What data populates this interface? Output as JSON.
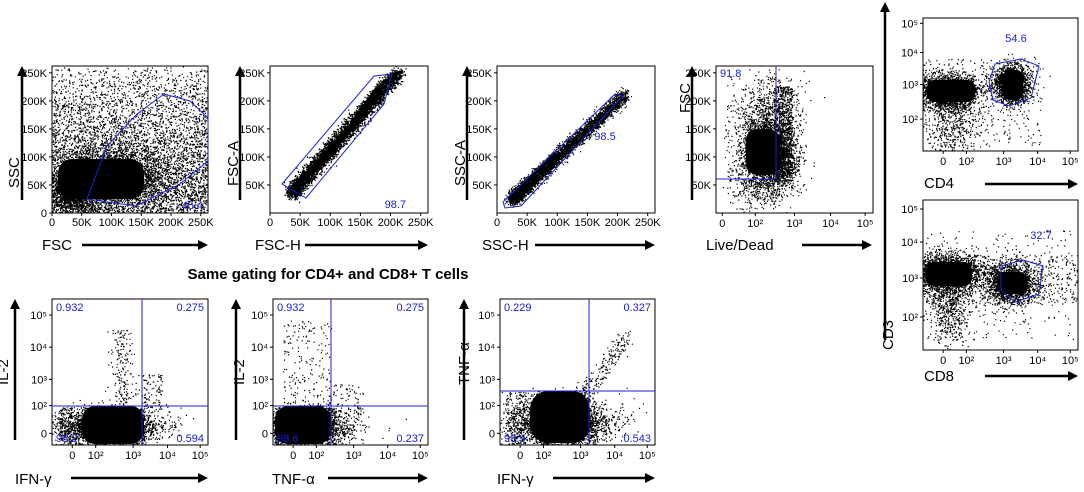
{
  "colors": {
    "gate": "#1a22d6",
    "dots": "#000000",
    "frame": "#000000"
  },
  "section_title": "Same gating for CD4+ and CD8+ T cells",
  "chart_data": [
    {
      "id": "p1",
      "type": "scatter",
      "xlabel": "FSC",
      "ylabel": "SSC",
      "xscale": "linear",
      "yscale": "linear",
      "xlim": [
        0,
        262144
      ],
      "ylim": [
        0,
        262144
      ],
      "xticks": [
        "0",
        "50K",
        "100K",
        "150K",
        "200K",
        "250K"
      ],
      "yticks": [
        "0",
        "50K",
        "100K",
        "150K",
        "200K",
        "250K"
      ],
      "gate": "polygon",
      "gate_percent": "45.4"
    },
    {
      "id": "p2",
      "type": "scatter",
      "xlabel": "FSC-H",
      "ylabel": "FSC-A",
      "xscale": "linear",
      "yscale": "linear",
      "xlim": [
        0,
        262144
      ],
      "ylim": [
        0,
        262144
      ],
      "xticks": [
        "0",
        "50K",
        "100K",
        "150K",
        "200K",
        "250K"
      ],
      "yticks": [
        "50K",
        "100K",
        "150K",
        "200K",
        "250K"
      ],
      "gate": "polygon",
      "gate_percent": "98.7"
    },
    {
      "id": "p3",
      "type": "scatter",
      "xlabel": "SSC-H",
      "ylabel": "SSC-A",
      "xscale": "linear",
      "yscale": "linear",
      "xlim": [
        0,
        262144
      ],
      "ylim": [
        0,
        262144
      ],
      "xticks": [
        "0",
        "50K",
        "100K",
        "150K",
        "200K",
        "250K"
      ],
      "yticks": [
        "50K",
        "100K",
        "150K",
        "200K",
        "250K"
      ],
      "gate": "polygon",
      "gate_percent": "98.5"
    },
    {
      "id": "p4",
      "type": "scatter",
      "xlabel": "Live/Dead",
      "ylabel": "FSC",
      "xscale": "biexponential",
      "yscale": "linear",
      "ylim": [
        0,
        262144
      ],
      "xticks": [
        "0",
        "10²",
        "10³",
        "10⁴",
        "10⁵"
      ],
      "yticks": [
        "50K",
        "100K",
        "150K",
        "200K",
        "250K"
      ],
      "gate": "rectangle",
      "gate_percent": "91.8"
    },
    {
      "id": "p5",
      "type": "scatter",
      "xlabel": "CD4",
      "ylabel": "CD3",
      "xscale": "biexponential",
      "yscale": "biexponential",
      "xticks": [
        "0",
        "10²",
        "10³",
        "10⁴",
        "10⁵"
      ],
      "yticks": [
        "10²",
        "10³",
        "10⁴",
        "10⁵"
      ],
      "gate": "polygon",
      "gate_percent": "54.6"
    },
    {
      "id": "p6",
      "type": "scatter",
      "xlabel": "CD8",
      "ylabel": "CD3",
      "xscale": "biexponential",
      "yscale": "biexponential",
      "xticks": [
        "0",
        "10²",
        "10³",
        "10⁴",
        "10⁵"
      ],
      "yticks": [
        "10²",
        "10³",
        "10⁴",
        "10⁵"
      ],
      "gate": "polygon",
      "gate_percent": "32.7"
    },
    {
      "id": "p7",
      "type": "scatter",
      "xlabel": "IFN-γ",
      "ylabel": "IL-2",
      "xscale": "biexponential",
      "yscale": "biexponential",
      "xticks": [
        "0",
        "10²",
        "10³",
        "10⁴",
        "10⁵"
      ],
      "yticks": [
        "0",
        "10²",
        "10³",
        "10⁴",
        "10⁵"
      ],
      "gate": "quadrant",
      "quadrants": {
        "top_left": "0.932",
        "top_right": "0.275",
        "bottom_left": "98.2",
        "bottom_right": "0.594"
      }
    },
    {
      "id": "p8",
      "type": "scatter",
      "xlabel": "TNF-α",
      "ylabel": "IL-2",
      "xscale": "biexponential",
      "yscale": "biexponential",
      "xticks": [
        "0",
        "10²",
        "10³",
        "10⁴",
        "10⁵"
      ],
      "yticks": [
        "0",
        "10²",
        "10³",
        "10⁴",
        "10⁵"
      ],
      "gate": "quadrant",
      "quadrants": {
        "top_left": "0.932",
        "top_right": "0.275",
        "bottom_left": "98.6",
        "bottom_right": "0.237"
      }
    },
    {
      "id": "p9",
      "type": "scatter",
      "xlabel": "IFN-γ",
      "ylabel": "TNF-α",
      "xscale": "biexponential",
      "yscale": "biexponential",
      "xticks": [
        "0",
        "10²",
        "10³",
        "10⁴",
        "10⁵"
      ],
      "yticks": [
        "0",
        "10²",
        "10³",
        "10⁴",
        "10⁵"
      ],
      "gate": "quadrant",
      "quadrants": {
        "top_left": "0.229",
        "top_right": "0.327",
        "bottom_left": "98.9",
        "bottom_right": "0.543"
      }
    }
  ]
}
